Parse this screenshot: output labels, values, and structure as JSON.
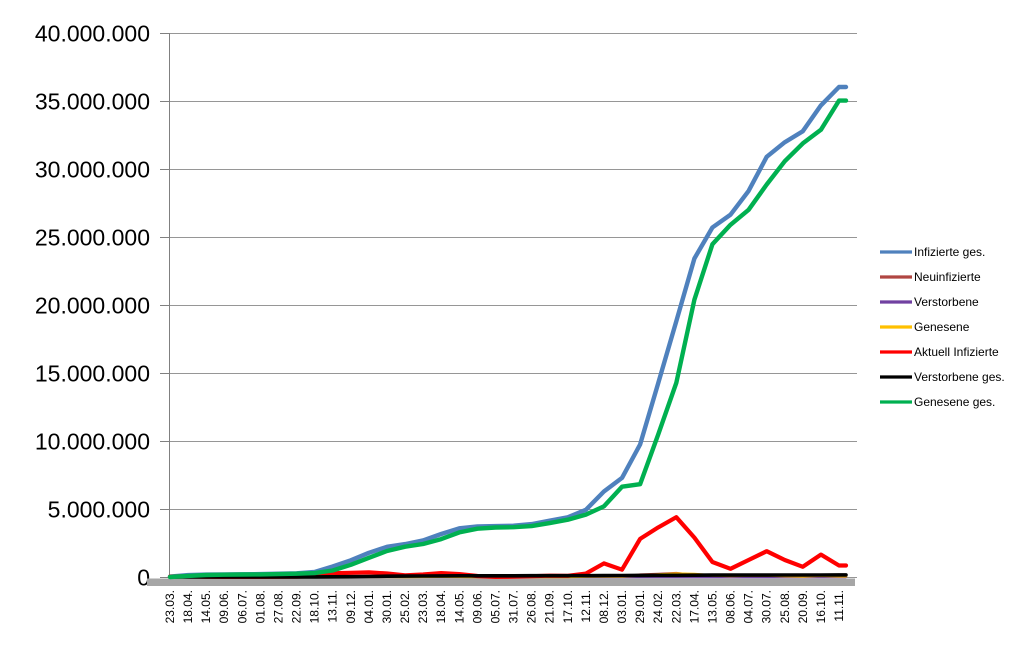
{
  "chart_data": {
    "type": "line",
    "title": "",
    "xlabel": "",
    "ylabel": "",
    "ylim": [
      0,
      40000000
    ],
    "y_axis": {
      "min": 0,
      "max": 40000000,
      "tick_interval": 5000000,
      "tick_labels": [
        "0",
        "5.000.000",
        "10.000.000",
        "15.000.000",
        "20.000.000",
        "25.000.000",
        "30.000.000",
        "35.000.000",
        "40.000.000"
      ]
    },
    "x_axis": {
      "label_rotation_deg": 90,
      "tick_labels": [
        "23.03.",
        "18.04.",
        "14.05.",
        "09.06.",
        "06.07.",
        "01.08.",
        "27.08.",
        "22.09.",
        "18.10.",
        "13.11.",
        "09.12.",
        "04.01.",
        "30.01.",
        "25.02.",
        "23.03.",
        "18.04.",
        "14.05.",
        "09.06.",
        "05.07.",
        "31.07.",
        "26.08.",
        "21.09.",
        "17.10.",
        "12.11.",
        "08.12.",
        "03.01.",
        "29.01.",
        "24.02.",
        "22.03.",
        "17.04.",
        "13.05.",
        "08.06.",
        "04.07.",
        "30.07.",
        "25.08.",
        "20.09.",
        "16.10.",
        "11.11."
      ]
    },
    "grid": {
      "horizontal": true,
      "vertical": false,
      "color": "#969696"
    },
    "axis_color": "#808080",
    "axis_shadow_color": "#A6A6A6",
    "legend": {
      "position": "right",
      "border": false
    },
    "series": [
      {
        "name": "Infizierte ges.",
        "color": "#4F81BD",
        "stroke_width": 4.4,
        "values": [
          29000,
          143000,
          174000,
          186000,
          198000,
          210000,
          239000,
          275000,
          366000,
          773000,
          1230000,
          1780000,
          2220000,
          2420000,
          2690000,
          3160000,
          3580000,
          3710000,
          3740000,
          3770000,
          3890000,
          4150000,
          4390000,
          4940000,
          6290000,
          7290000,
          9740000,
          14250000,
          18800000,
          23420000,
          25700000,
          26640000,
          28390000,
          30900000,
          31970000,
          32780000,
          34680000,
          36030000
        ]
      },
      {
        "name": "Neuinfizierte",
        "color": "#B04642",
        "stroke_width": 2.4,
        "values": [
          4000,
          2500,
          900,
          350,
          400,
          900,
          1500,
          1800,
          7800,
          23000,
          28000,
          15000,
          14000,
          9000,
          16000,
          24000,
          12000,
          3000,
          600,
          2500,
          11000,
          10000,
          10000,
          48000,
          70000,
          30000,
          180000,
          220000,
          290000,
          150000,
          85000,
          60000,
          125000,
          90000,
          40000,
          45000,
          115000,
          40000
        ]
      },
      {
        "name": "Verstorbene",
        "color": "#7141A1",
        "stroke_width": 2.4,
        "values": [
          30,
          240,
          100,
          25,
          7,
          5,
          8,
          10,
          30,
          190,
          480,
          900,
          850,
          400,
          250,
          250,
          230,
          90,
          35,
          20,
          40,
          70,
          75,
          170,
          370,
          350,
          180,
          190,
          250,
          230,
          130,
          90,
          100,
          120,
          130,
          100,
          130,
          150
        ]
      },
      {
        "name": "Genesene",
        "color": "#FFC000",
        "stroke_width": 2.6,
        "values": [
          1800,
          3100,
          1300,
          400,
          350,
          700,
          1200,
          1500,
          4500,
          17000,
          26000,
          18000,
          17000,
          10000,
          13000,
          21000,
          16000,
          6000,
          1200,
          1500,
          8000,
          9500,
          9500,
          30000,
          55000,
          42000,
          110000,
          185000,
          240000,
          215000,
          120000,
          70000,
          105000,
          110000,
          65000,
          42000,
          95000,
          55000
        ]
      },
      {
        "name": "Aktuell Infizierte",
        "color": "#FF0000",
        "stroke_width": 4.2,
        "values": [
          26000,
          54000,
          17000,
          7000,
          6000,
          9000,
          17000,
          22000,
          70000,
          281000,
          310000,
          335000,
          254000,
          121000,
          185000,
          290000,
          214000,
          71000,
          11000,
          19000,
          58000,
          97000,
          85000,
          250000,
          1000000,
          540000,
          2800000,
          3650000,
          4400000,
          2900000,
          1100000,
          600000,
          1250000,
          1900000,
          1250000,
          750000,
          1650000,
          845000
        ]
      },
      {
        "name": "Verstorbene ges.",
        "color": "#000000",
        "stroke_width": 3.6,
        "values": [
          150,
          4600,
          7900,
          8800,
          9100,
          9200,
          9300,
          9500,
          9800,
          12200,
          20000,
          35000,
          56000,
          69000,
          75000,
          80000,
          86000,
          89500,
          91000,
          91800,
          92100,
          93000,
          94700,
          97700,
          104000,
          112000,
          117500,
          122000,
          126500,
          133000,
          137500,
          139500,
          141000,
          143000,
          145500,
          147500,
          150500,
          155000
        ]
      },
      {
        "name": "Genesene ges.",
        "color": "#00B050",
        "stroke_width": 4.4,
        "values": [
          3000,
          84000,
          149000,
          170000,
          183000,
          192000,
          213000,
          243000,
          286000,
          480000,
          900000,
          1410000,
          1910000,
          2230000,
          2430000,
          2790000,
          3280000,
          3550000,
          3640000,
          3660000,
          3740000,
          3960000,
          4210000,
          4590000,
          5190000,
          6640000,
          6820000,
          10480000,
          14270000,
          20390000,
          24460000,
          25900000,
          27000000,
          28860000,
          30570000,
          31880000,
          32880000,
          35030000
        ]
      }
    ]
  }
}
